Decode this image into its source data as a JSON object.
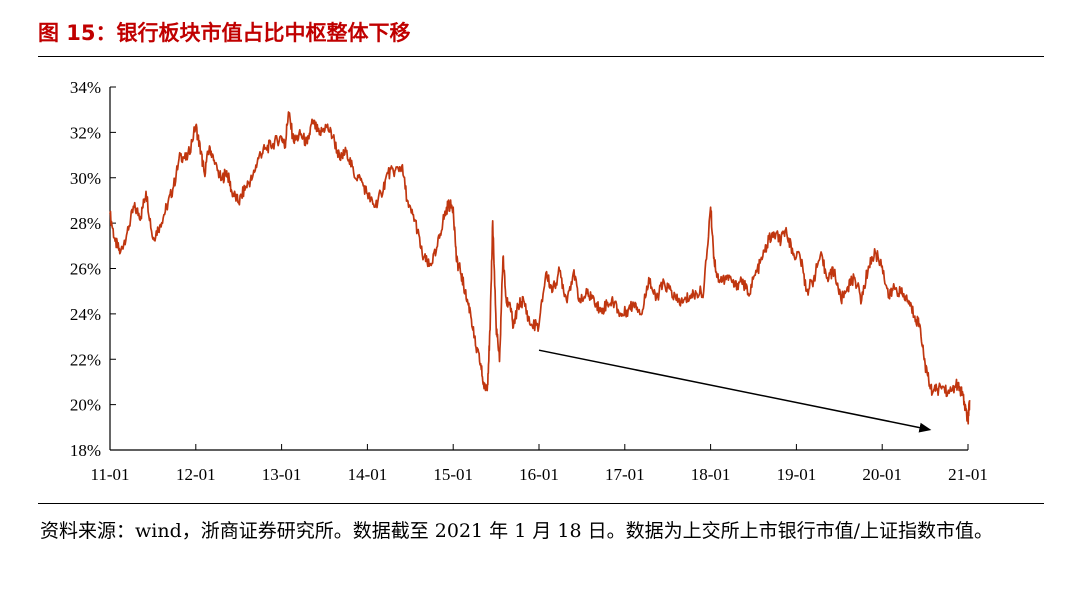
{
  "figure": {
    "title": "图 15：银行板块市值占比中枢整体下移",
    "source": "资料来源：wind，浙商证券研究所。数据截至 2021 年 1 月 18 日。数据为上交所上市银行市值/上证指数市值。"
  },
  "chart_data": {
    "type": "line",
    "title": "",
    "xlabel": "",
    "ylabel": "",
    "x_ticks": [
      "11-01",
      "12-01",
      "13-01",
      "14-01",
      "15-01",
      "16-01",
      "17-01",
      "18-01",
      "19-01",
      "20-01",
      "21-01"
    ],
    "y_ticks": [
      "18%",
      "20%",
      "22%",
      "24%",
      "26%",
      "28%",
      "30%",
      "32%",
      "34%"
    ],
    "ylim": [
      18,
      34
    ],
    "xlim": [
      2011.0,
      2021.0
    ],
    "grid": false,
    "legend": "none",
    "line_color": "#c0360f",
    "arrow_color": "#000000",
    "series": [
      {
        "x": [
          2011.0,
          2011.06,
          2011.12,
          2011.2,
          2011.28,
          2011.36,
          2011.42,
          2011.5,
          2011.58,
          2011.66,
          2011.74,
          2011.82,
          2011.9,
          2012.0,
          2012.06,
          2012.1,
          2012.16,
          2012.22,
          2012.3,
          2012.36,
          2012.42,
          2012.5,
          2012.58,
          2012.66,
          2012.74,
          2012.82,
          2012.9,
          2013.0,
          2013.04,
          2013.08,
          2013.14,
          2013.22,
          2013.3,
          2013.36,
          2013.44,
          2013.52,
          2013.6,
          2013.68,
          2013.76,
          2013.84,
          2013.92,
          2014.0,
          2014.08,
          2014.16,
          2014.24,
          2014.32,
          2014.4,
          2014.48,
          2014.56,
          2014.64,
          2014.72,
          2014.8,
          2014.88,
          2014.94,
          2015.0,
          2015.04,
          2015.08,
          2015.14,
          2015.2,
          2015.26,
          2015.32,
          2015.36,
          2015.4,
          2015.43,
          2015.46,
          2015.5,
          2015.54,
          2015.58,
          2015.62,
          2015.66,
          2015.7,
          2015.76,
          2015.82,
          2015.9,
          2016.0,
          2016.08,
          2016.16,
          2016.24,
          2016.32,
          2016.4,
          2016.48,
          2016.56,
          2016.64,
          2016.72,
          2016.8,
          2016.88,
          2016.96,
          2017.04,
          2017.12,
          2017.2,
          2017.28,
          2017.36,
          2017.44,
          2017.52,
          2017.6,
          2017.68,
          2017.76,
          2017.84,
          2017.92,
          2018.0,
          2018.04,
          2018.08,
          2018.14,
          2018.2,
          2018.28,
          2018.36,
          2018.44,
          2018.52,
          2018.6,
          2018.68,
          2018.76,
          2018.82,
          2018.88,
          2018.96,
          2019.04,
          2019.12,
          2019.2,
          2019.28,
          2019.36,
          2019.44,
          2019.52,
          2019.6,
          2019.68,
          2019.76,
          2019.84,
          2019.92,
          2020.0,
          2020.08,
          2020.14,
          2020.22,
          2020.3,
          2020.38,
          2020.44,
          2020.5,
          2020.56,
          2020.62,
          2020.7,
          2020.78,
          2020.86,
          2020.92,
          2020.96,
          2021.0,
          2021.02
        ],
        "values": [
          28.4,
          27.2,
          26.7,
          27.6,
          28.7,
          28.3,
          29.4,
          27.3,
          27.9,
          28.7,
          29.6,
          31.0,
          30.8,
          32.3,
          31.1,
          30.2,
          31.4,
          30.6,
          29.9,
          30.3,
          29.4,
          28.9,
          29.6,
          30.0,
          31.0,
          31.3,
          31.5,
          31.8,
          31.4,
          32.9,
          31.6,
          31.9,
          31.5,
          32.5,
          31.9,
          32.3,
          31.8,
          30.8,
          31.2,
          30.2,
          29.9,
          29.3,
          28.7,
          29.3,
          30.2,
          30.3,
          30.5,
          28.7,
          28.1,
          26.6,
          26.1,
          26.7,
          28.1,
          28.8,
          28.7,
          26.3,
          26.0,
          24.9,
          24.1,
          22.6,
          21.8,
          20.7,
          20.9,
          23.3,
          28.1,
          23.5,
          21.9,
          26.5,
          24.5,
          24.5,
          23.4,
          24.4,
          24.6,
          23.5,
          23.5,
          25.8,
          25.0,
          25.9,
          24.6,
          25.8,
          24.5,
          24.9,
          24.7,
          24.1,
          24.5,
          24.5,
          23.9,
          24.2,
          24.5,
          24.0,
          25.6,
          24.6,
          25.3,
          25.1,
          24.6,
          24.5,
          24.8,
          24.9,
          25.0,
          28.7,
          26.5,
          25.6,
          25.5,
          25.7,
          25.2,
          25.5,
          24.9,
          25.7,
          26.4,
          27.3,
          27.5,
          27.2,
          27.8,
          26.6,
          26.6,
          25.0,
          25.5,
          26.6,
          25.6,
          25.9,
          24.6,
          25.2,
          25.6,
          24.6,
          26.1,
          26.7,
          26.1,
          24.7,
          25.2,
          24.9,
          24.6,
          23.9,
          23.5,
          21.8,
          20.7,
          20.6,
          20.8,
          20.5,
          20.9,
          20.6,
          20.0,
          19.3,
          20.2
        ]
      }
    ],
    "annotation_arrow": {
      "from": [
        2016.0,
        22.4
      ],
      "to": [
        2020.55,
        18.9
      ]
    }
  }
}
